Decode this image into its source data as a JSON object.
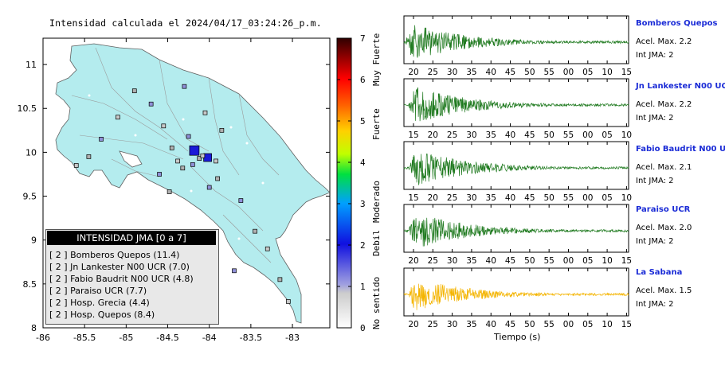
{
  "map": {
    "title": "Intensidad calculada el 2024/04/17_03:24:26_p.m.",
    "x_ticks": [
      "-86",
      "-85.5",
      "-85",
      "-84.5",
      "-84",
      "-83.5",
      "-83"
    ],
    "y_ticks": [
      "11",
      "10.5",
      "10",
      "9.5",
      "9",
      "8.5",
      "8"
    ],
    "xlim": [
      -86,
      -82.55
    ],
    "ylim": [
      8,
      11.3
    ],
    "legend": {
      "title": "INTENSIDAD JMA [0 a 7]",
      "rows": [
        "[ 2 ]  Bomberos Quepos (11.4)",
        "[ 2 ]  Jn Lankester N00 UCR (7.0)",
        "[ 2 ]  Fabio Baudrit N00 UCR (4.8)",
        "[ 2 ]  Paraiso UCR (7.7)",
        "[ 2 ]  Hosp. Grecia (4.4)",
        "[ 2 ]  Hosp. Quepos (8.4)"
      ]
    },
    "colors": {
      "land": "#b4ecee",
      "border": "#555555",
      "station_edge": "#000000"
    }
  },
  "colorbar": {
    "ticks": [
      "0",
      "1",
      "2",
      "3",
      "4",
      "5",
      "6",
      "7"
    ],
    "labels": [
      "No sentido",
      "Debil",
      "Moderado",
      "Fuerte",
      "Muy Fuerte"
    ]
  },
  "traces": {
    "xlabel": "Tiempo (s)",
    "stations": [
      {
        "name": "Bomberos Quepos",
        "acel": "Acel. Max. 2.2",
        "jma": "Int JMA: 2",
        "color": "#1f7a1f",
        "ticks": [
          "20",
          "25",
          "30",
          "35",
          "40",
          "45",
          "50",
          "55",
          "00",
          "05",
          "10",
          "15"
        ]
      },
      {
        "name": "Jn Lankester N00 UCR",
        "acel": "Acel. Max. 2.2",
        "jma": "Int JMA: 2",
        "color": "#1f7a1f",
        "ticks": [
          "15",
          "20",
          "25",
          "30",
          "35",
          "40",
          "45",
          "50",
          "55",
          "00",
          "05",
          "10"
        ]
      },
      {
        "name": "Fabio Baudrit N00 UCR",
        "acel": "Acel. Max. 2.1",
        "jma": "Int JMA: 2",
        "color": "#1f7a1f",
        "ticks": [
          "15",
          "20",
          "25",
          "30",
          "35",
          "40",
          "45",
          "50",
          "55",
          "00",
          "05",
          "10"
        ]
      },
      {
        "name": "Paraiso UCR",
        "acel": "Acel. Max. 2.0",
        "jma": "Int JMA: 2",
        "color": "#1f7a1f",
        "ticks": [
          "20",
          "25",
          "30",
          "35",
          "40",
          "45",
          "50",
          "55",
          "00",
          "05",
          "10",
          "15"
        ]
      },
      {
        "name": "La Sabana",
        "acel": "Acel. Max. 1.5",
        "jma": "Int JMA: 2",
        "color": "#f4b400",
        "ticks": [
          "20",
          "25",
          "30",
          "35",
          "40",
          "45",
          "50",
          "55",
          "00",
          "05",
          "10",
          "15"
        ]
      }
    ]
  },
  "chart_data": [
    {
      "type": "scatter",
      "title": "Intensidad calculada el 2024/04/17_03:24:26_p.m.",
      "xlim": [
        -86,
        -82.55
      ],
      "ylim": [
        8,
        11.3
      ],
      "series": [
        {
          "name": "Estaciones",
          "x": [
            -84.02,
            -84.18,
            -84.45,
            -83.92,
            -84.6,
            -84.12,
            -84.08,
            -84.2,
            -84.32,
            -84.38,
            -84.25,
            -83.85,
            -84.55,
            -84.7,
            -84.9,
            -85.1,
            -85.3,
            -85.45,
            -85.6,
            -83.62,
            -83.45,
            -83.3,
            -83.7,
            -83.15,
            -83.05,
            -84.0,
            -83.9,
            -84.05,
            -84.3,
            -84.48
          ],
          "y": [
            9.94,
            10.02,
            10.05,
            9.9,
            9.75,
            9.93,
            9.96,
            9.86,
            9.82,
            9.9,
            10.18,
            10.25,
            10.3,
            10.55,
            10.7,
            10.4,
            10.15,
            9.95,
            9.85,
            9.45,
            9.1,
            8.9,
            8.65,
            8.55,
            8.3,
            9.6,
            9.7,
            10.45,
            10.75,
            9.55
          ],
          "size": [
            3,
            4,
            2,
            2,
            2,
            2,
            2,
            2,
            2,
            2,
            2,
            2,
            2,
            2,
            2,
            2,
            2,
            2,
            2,
            2,
            2,
            2,
            2,
            2,
            2,
            2,
            2,
            2,
            2,
            2
          ]
        }
      ]
    },
    {
      "type": "line",
      "title": "",
      "xlabel": "Tiempo (s)",
      "series": [
        {
          "name": "Bomberos Quepos",
          "peak": 2.2
        },
        {
          "name": "Jn Lankester N00 UCR",
          "peak": 2.2
        },
        {
          "name": "Fabio Baudrit N00 UCR",
          "peak": 2.1
        },
        {
          "name": "Paraiso UCR",
          "peak": 2.0
        },
        {
          "name": "La Sabana",
          "peak": 1.5
        }
      ]
    }
  ]
}
